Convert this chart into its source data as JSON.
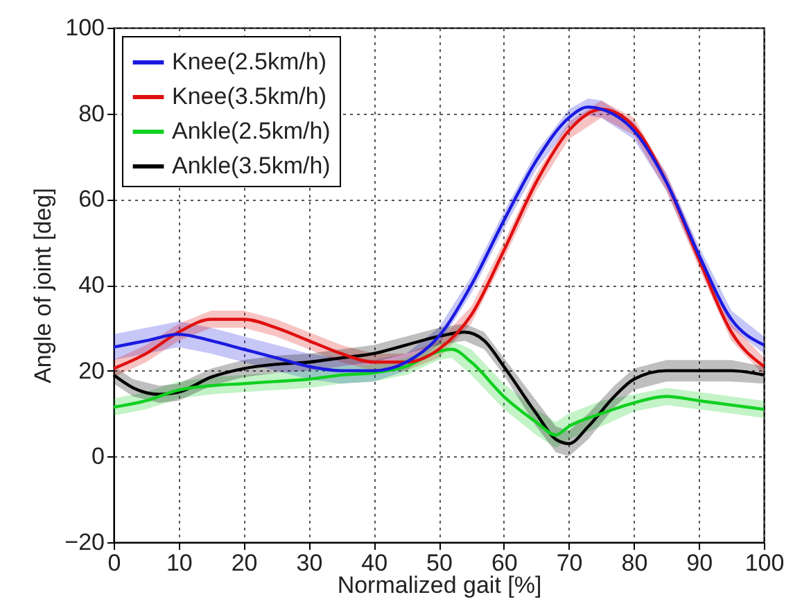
{
  "chart_data": {
    "type": "line",
    "xlabel": "Normalized gait [%]",
    "ylabel": "Angle of joint [deg]",
    "xlim": [
      0,
      100
    ],
    "ylim": [
      -20,
      100
    ],
    "xticks": [
      0,
      10,
      20,
      30,
      40,
      50,
      60,
      70,
      80,
      90,
      100
    ],
    "yticks": [
      -20,
      0,
      20,
      40,
      60,
      80,
      100
    ],
    "grid": true,
    "legend": "top left",
    "line_style": "solid",
    "series": [
      {
        "name": "Knee(2.5km/h)",
        "color": "#1a1ae0",
        "x": [
          0,
          5,
          10,
          15,
          20,
          25,
          30,
          35,
          40,
          45,
          50,
          55,
          60,
          65,
          70,
          73,
          75,
          80,
          85,
          90,
          95,
          100
        ],
        "values": [
          25.5,
          27,
          28.5,
          27,
          25,
          23,
          21,
          20,
          20,
          22,
          28,
          40,
          55,
          69,
          79,
          81.5,
          81,
          76,
          64,
          47,
          32,
          26
        ],
        "lower": [
          22.5,
          24,
          25.5,
          24,
          22,
          20,
          18,
          17,
          17.5,
          20,
          26,
          38,
          53,
          67,
          77,
          79.5,
          79,
          74,
          62,
          45,
          30,
          24
        ],
        "upper": [
          28.5,
          30,
          31.5,
          30,
          28,
          26,
          24,
          23,
          22.5,
          24,
          30,
          42,
          57,
          71,
          81,
          83.5,
          83,
          78,
          66,
          49,
          34,
          28
        ]
      },
      {
        "name": "Knee(3.5km/h)",
        "color": "#e01010",
        "x": [
          0,
          5,
          10,
          15,
          20,
          25,
          30,
          35,
          40,
          45,
          50,
          55,
          60,
          65,
          70,
          75,
          80,
          85,
          90,
          95,
          100
        ],
        "values": [
          20.5,
          24,
          29,
          32,
          32,
          30,
          27,
          24,
          22,
          22,
          25,
          33,
          48,
          64,
          76,
          81,
          77,
          64,
          46,
          29,
          21
        ],
        "lower": [
          18.5,
          22,
          27,
          30,
          30,
          28,
          25,
          22,
          20,
          20,
          23,
          31,
          46,
          62,
          74,
          79,
          75,
          62,
          44,
          27,
          19
        ],
        "upper": [
          22.5,
          26,
          31,
          34,
          34,
          32,
          29,
          26,
          24,
          24,
          27,
          35,
          50,
          66,
          78,
          83,
          79,
          66,
          48,
          31,
          23
        ]
      },
      {
        "name": "Ankle(2.5km/h)",
        "color": "#10d020",
        "x": [
          0,
          5,
          10,
          15,
          20,
          25,
          30,
          35,
          40,
          45,
          50,
          52,
          55,
          60,
          65,
          68,
          70,
          75,
          80,
          85,
          90,
          95,
          100
        ],
        "values": [
          11.5,
          13,
          15.5,
          16.5,
          17,
          17.5,
          18,
          19,
          19.5,
          21,
          24.5,
          25,
          22,
          14,
          8,
          5,
          7,
          10,
          12.5,
          14,
          13,
          12,
          11
        ],
        "lower": [
          9.5,
          11,
          13.5,
          14.5,
          15,
          15.5,
          16,
          17,
          17.5,
          19,
          22.5,
          23,
          19,
          11,
          5,
          2,
          4,
          7,
          10.5,
          12,
          11,
          10,
          9
        ],
        "upper": [
          13.5,
          15,
          17.5,
          18.5,
          19,
          19.5,
          20,
          21,
          21.5,
          23,
          26.5,
          27,
          25,
          17,
          11,
          8,
          10,
          13,
          14.5,
          16,
          15,
          14,
          13
        ]
      },
      {
        "name": "Ankle(3.5km/h)",
        "color": "#000000",
        "x": [
          0,
          3,
          7,
          10,
          15,
          20,
          25,
          30,
          35,
          40,
          45,
          50,
          54,
          57,
          60,
          65,
          68,
          70,
          73,
          77,
          80,
          85,
          90,
          95,
          100
        ],
        "values": [
          19,
          16,
          14.5,
          15,
          18.5,
          20.5,
          21.5,
          22,
          23,
          24,
          26,
          28,
          29,
          27,
          21,
          10,
          4,
          3,
          7,
          14,
          18,
          20,
          20,
          20,
          19
        ],
        "lower": [
          17,
          14,
          12.5,
          13,
          16.5,
          18.5,
          19.5,
          20,
          21,
          22,
          24,
          26,
          27,
          25,
          19,
          7,
          1,
          0,
          4,
          11.5,
          15.5,
          17.5,
          17.5,
          17.5,
          17
        ],
        "upper": [
          21,
          18,
          16.5,
          17,
          20.5,
          22.5,
          23.5,
          24,
          25,
          26,
          28,
          30,
          31,
          29,
          23,
          13,
          7,
          6,
          10,
          16.5,
          20.5,
          22.5,
          22.5,
          22.5,
          21
        ]
      }
    ]
  }
}
